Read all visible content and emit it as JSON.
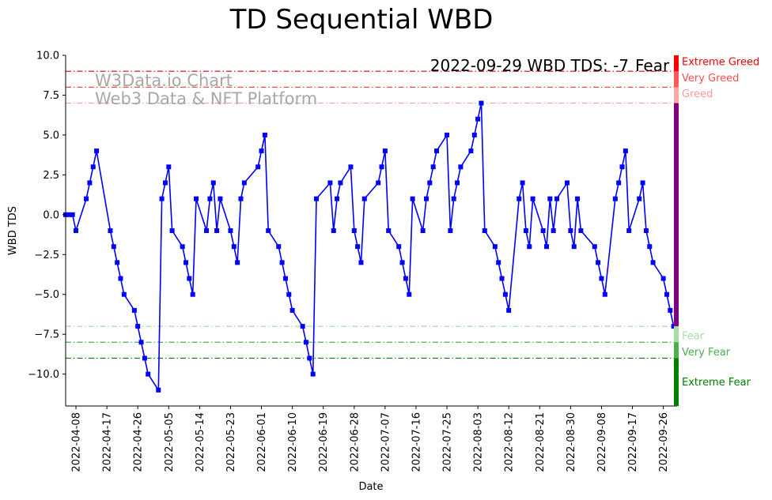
{
  "chart_data": {
    "type": "line",
    "title": "TD Sequential WBD",
    "xlabel": "Date",
    "ylabel": "WBD TDS",
    "start_date": "2022-04-05",
    "end_date": "2022-09-30",
    "ylim": [
      -12,
      10
    ],
    "yticks": [
      10,
      7.5,
      5,
      2.5,
      0,
      -2.5,
      -5,
      -7.5,
      -10
    ],
    "ytick_labels": [
      "10.0",
      "7.5",
      "5.0",
      "2.5",
      "0.0",
      "−2.5",
      "−5.0",
      "−7.5",
      "−10.0"
    ],
    "xticks": [
      "2022-04-08",
      "2022-04-17",
      "2022-04-26",
      "2022-05-05",
      "2022-05-14",
      "2022-05-23",
      "2022-06-01",
      "2022-06-10",
      "2022-06-19",
      "2022-06-28",
      "2022-07-07",
      "2022-07-16",
      "2022-07-25",
      "2022-08-03",
      "2022-08-12",
      "2022-08-21",
      "2022-08-30",
      "2022-09-08",
      "2022-09-17",
      "2022-09-26"
    ],
    "series": [
      {
        "name": "WBD TDS",
        "color": "#0000ff",
        "points": [
          [
            "2022-04-05",
            0
          ],
          [
            "2022-04-06",
            0
          ],
          [
            "2022-04-07",
            0
          ],
          [
            "2022-04-08",
            -1
          ],
          [
            "2022-04-11",
            1
          ],
          [
            "2022-04-12",
            2
          ],
          [
            "2022-04-13",
            3
          ],
          [
            "2022-04-14",
            4
          ],
          [
            "2022-04-18",
            -1
          ],
          [
            "2022-04-19",
            -2
          ],
          [
            "2022-04-20",
            -3
          ],
          [
            "2022-04-21",
            -4
          ],
          [
            "2022-04-22",
            -5
          ],
          [
            "2022-04-25",
            -6
          ],
          [
            "2022-04-26",
            -7
          ],
          [
            "2022-04-27",
            -8
          ],
          [
            "2022-04-28",
            -9
          ],
          [
            "2022-04-29",
            -10
          ],
          [
            "2022-05-02",
            -11
          ],
          [
            "2022-05-03",
            1
          ],
          [
            "2022-05-04",
            2
          ],
          [
            "2022-05-05",
            3
          ],
          [
            "2022-05-06",
            -1
          ],
          [
            "2022-05-09",
            -2
          ],
          [
            "2022-05-10",
            -3
          ],
          [
            "2022-05-11",
            -4
          ],
          [
            "2022-05-12",
            -5
          ],
          [
            "2022-05-13",
            1
          ],
          [
            "2022-05-16",
            -1
          ],
          [
            "2022-05-17",
            1
          ],
          [
            "2022-05-18",
            2
          ],
          [
            "2022-05-19",
            -1
          ],
          [
            "2022-05-20",
            1
          ],
          [
            "2022-05-23",
            -1
          ],
          [
            "2022-05-24",
            -2
          ],
          [
            "2022-05-25",
            -3
          ],
          [
            "2022-05-26",
            1
          ],
          [
            "2022-05-27",
            2
          ],
          [
            "2022-05-31",
            3
          ],
          [
            "2022-06-01",
            4
          ],
          [
            "2022-06-02",
            5
          ],
          [
            "2022-06-03",
            -1
          ],
          [
            "2022-06-06",
            -2
          ],
          [
            "2022-06-07",
            -3
          ],
          [
            "2022-06-08",
            -4
          ],
          [
            "2022-06-09",
            -5
          ],
          [
            "2022-06-10",
            -6
          ],
          [
            "2022-06-13",
            -7
          ],
          [
            "2022-06-14",
            -8
          ],
          [
            "2022-06-15",
            -9
          ],
          [
            "2022-06-16",
            -10
          ],
          [
            "2022-06-17",
            1
          ],
          [
            "2022-06-21",
            2
          ],
          [
            "2022-06-22",
            -1
          ],
          [
            "2022-06-23",
            1
          ],
          [
            "2022-06-24",
            2
          ],
          [
            "2022-06-27",
            3
          ],
          [
            "2022-06-28",
            -1
          ],
          [
            "2022-06-29",
            -2
          ],
          [
            "2022-06-30",
            -3
          ],
          [
            "2022-07-01",
            1
          ],
          [
            "2022-07-05",
            2
          ],
          [
            "2022-07-06",
            3
          ],
          [
            "2022-07-07",
            4
          ],
          [
            "2022-07-08",
            -1
          ],
          [
            "2022-07-11",
            -2
          ],
          [
            "2022-07-12",
            -3
          ],
          [
            "2022-07-13",
            -4
          ],
          [
            "2022-07-14",
            -5
          ],
          [
            "2022-07-15",
            1
          ],
          [
            "2022-07-18",
            -1
          ],
          [
            "2022-07-19",
            1
          ],
          [
            "2022-07-20",
            2
          ],
          [
            "2022-07-21",
            3
          ],
          [
            "2022-07-22",
            4
          ],
          [
            "2022-07-25",
            5
          ],
          [
            "2022-07-26",
            -1
          ],
          [
            "2022-07-27",
            1
          ],
          [
            "2022-07-28",
            2
          ],
          [
            "2022-07-29",
            3
          ],
          [
            "2022-08-01",
            4
          ],
          [
            "2022-08-02",
            5
          ],
          [
            "2022-08-03",
            6
          ],
          [
            "2022-08-04",
            7
          ],
          [
            "2022-08-05",
            -1
          ],
          [
            "2022-08-08",
            -2
          ],
          [
            "2022-08-09",
            -3
          ],
          [
            "2022-08-10",
            -4
          ],
          [
            "2022-08-11",
            -5
          ],
          [
            "2022-08-12",
            -6
          ],
          [
            "2022-08-15",
            1
          ],
          [
            "2022-08-16",
            2
          ],
          [
            "2022-08-17",
            -1
          ],
          [
            "2022-08-18",
            -2
          ],
          [
            "2022-08-19",
            1
          ],
          [
            "2022-08-22",
            -1
          ],
          [
            "2022-08-23",
            -2
          ],
          [
            "2022-08-24",
            1
          ],
          [
            "2022-08-25",
            -1
          ],
          [
            "2022-08-26",
            1
          ],
          [
            "2022-08-29",
            2
          ],
          [
            "2022-08-30",
            -1
          ],
          [
            "2022-08-31",
            -2
          ],
          [
            "2022-09-01",
            1
          ],
          [
            "2022-09-02",
            -1
          ],
          [
            "2022-09-06",
            -2
          ],
          [
            "2022-09-07",
            -3
          ],
          [
            "2022-09-08",
            -4
          ],
          [
            "2022-09-09",
            -5
          ],
          [
            "2022-09-12",
            1
          ],
          [
            "2022-09-13",
            2
          ],
          [
            "2022-09-14",
            3
          ],
          [
            "2022-09-15",
            4
          ],
          [
            "2022-09-16",
            -1
          ],
          [
            "2022-09-19",
            1
          ],
          [
            "2022-09-20",
            2
          ],
          [
            "2022-09-21",
            -1
          ],
          [
            "2022-09-22",
            -2
          ],
          [
            "2022-09-23",
            -3
          ],
          [
            "2022-09-26",
            -4
          ],
          [
            "2022-09-27",
            -5
          ],
          [
            "2022-09-28",
            -6
          ],
          [
            "2022-09-29",
            -7
          ]
        ]
      }
    ],
    "threshold_lines": [
      {
        "value": 9,
        "color": "#e00000"
      },
      {
        "value": 8,
        "color": "#f05050"
      },
      {
        "value": 7,
        "color": "#f4a0a0"
      },
      {
        "value": -7,
        "color": "#a8dca8"
      },
      {
        "value": -8,
        "color": "#4caf50"
      },
      {
        "value": -9,
        "color": "#008000"
      }
    ],
    "sentiment_bar": [
      {
        "from": 9,
        "to": 10,
        "color": "#ff0000"
      },
      {
        "from": 8,
        "to": 9,
        "color": "#ff5a5a"
      },
      {
        "from": 7,
        "to": 8,
        "color": "#ffa8a8"
      },
      {
        "from": -7,
        "to": 7,
        "color": "#800080"
      },
      {
        "from": -8,
        "to": -7,
        "color": "#a8dca8"
      },
      {
        "from": -9,
        "to": -8,
        "color": "#4caf50"
      },
      {
        "from": -12,
        "to": -9,
        "color": "#008000"
      }
    ],
    "zone_labels": [
      {
        "text": "Extreme Greed",
        "value": 9.6,
        "color": "#ff0000"
      },
      {
        "text": "Very Greed",
        "value": 8.6,
        "color": "#ff4d4d"
      },
      {
        "text": "Greed",
        "value": 7.6,
        "color": "#ff9a9a"
      },
      {
        "text": "Fear",
        "value": -7.6,
        "color": "#a8dca8"
      },
      {
        "text": "Very Fear",
        "value": -8.6,
        "color": "#4caf50"
      },
      {
        "text": "Extreme Fear",
        "value": -10.5,
        "color": "#008000"
      }
    ],
    "watermark": [
      "W3Data.io Chart",
      "Web3 Data & NFT Platform"
    ],
    "annotation": {
      "prefix": "2022-09-29 WBD TDS: -7",
      "status": "Fear",
      "status_color": "#a8dca8"
    }
  }
}
